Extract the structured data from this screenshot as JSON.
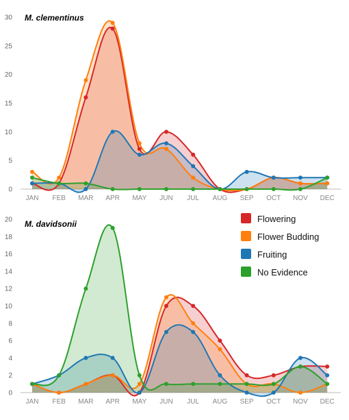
{
  "legend": {
    "items": [
      {
        "label": "Flowering",
        "color": "#d62728"
      },
      {
        "label": "Flower Budding",
        "color": "#ff7f0e"
      },
      {
        "label": "Fruiting",
        "color": "#1f77b4"
      },
      {
        "label": "No Evidence",
        "color": "#2ca02c"
      }
    ]
  },
  "chart_data": [
    {
      "type": "area",
      "title": "M. clementinus",
      "categories": [
        "JAN",
        "FEB",
        "MAR",
        "APR",
        "MAY",
        "JUN",
        "JUL",
        "AUG",
        "SEP",
        "OCT",
        "NOV",
        "DEC"
      ],
      "ylim": [
        0,
        30
      ],
      "yticks": [
        0,
        5,
        10,
        15,
        20,
        25,
        30
      ],
      "grid": false,
      "series": [
        {
          "name": "Flowering",
          "color": "#d62728",
          "values": [
            1,
            1,
            16,
            28,
            7,
            10,
            6,
            0,
            0,
            2,
            1,
            1
          ]
        },
        {
          "name": "Flower Budding",
          "color": "#ff7f0e",
          "values": [
            3,
            2,
            19,
            29,
            8,
            7,
            2,
            0,
            0,
            2,
            1,
            1
          ]
        },
        {
          "name": "Fruiting",
          "color": "#1f77b4",
          "values": [
            1,
            1,
            0,
            10,
            6,
            8,
            4,
            0,
            3,
            2,
            2,
            2
          ]
        },
        {
          "name": "No Evidence",
          "color": "#2ca02c",
          "values": [
            2,
            1,
            1,
            0,
            0,
            0,
            0,
            0,
            0,
            0,
            0,
            2
          ]
        }
      ]
    },
    {
      "type": "area",
      "title": "M. davidsonii",
      "categories": [
        "JAN",
        "FEB",
        "MAR",
        "APR",
        "MAY",
        "JUN",
        "JUL",
        "AUG",
        "SEP",
        "OCT",
        "NOV",
        "DEC"
      ],
      "ylim": [
        0,
        20
      ],
      "yticks": [
        0,
        2,
        4,
        6,
        8,
        10,
        12,
        14,
        16,
        18,
        20
      ],
      "grid": false,
      "legend_position": "top-right",
      "series": [
        {
          "name": "Flowering",
          "color": "#d62728",
          "values": [
            1,
            0,
            1,
            2,
            0,
            10,
            10,
            6,
            2,
            2,
            3,
            3
          ]
        },
        {
          "name": "Flower Budding",
          "color": "#ff7f0e",
          "values": [
            1,
            0,
            1,
            2,
            1,
            11,
            8,
            5,
            1,
            1,
            0,
            1
          ]
        },
        {
          "name": "Fruiting",
          "color": "#1f77b4",
          "values": [
            1,
            2,
            4,
            4,
            0,
            7,
            7,
            2,
            0,
            0,
            4,
            2
          ]
        },
        {
          "name": "No Evidence",
          "color": "#2ca02c",
          "values": [
            1,
            2,
            12,
            19,
            2,
            1,
            1,
            1,
            1,
            1,
            3,
            1
          ]
        }
      ]
    }
  ]
}
